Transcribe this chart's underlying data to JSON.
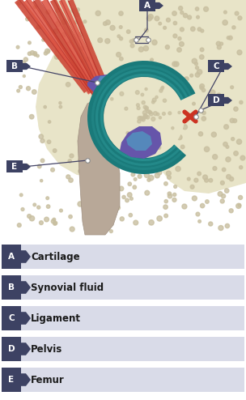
{
  "bg_color": "#ffffff",
  "label_box_color": "#3d4263",
  "label_text_color": "#ffffff",
  "legend_bg_color": "#d9dbe8",
  "legend_text_color": "#1a1a1a",
  "legend_items": [
    {
      "label": "A",
      "text": "Cartilage"
    },
    {
      "label": "B",
      "text": "Synovial fluid"
    },
    {
      "label": "C",
      "text": "Ligament"
    },
    {
      "label": "D",
      "text": "Pelvis"
    },
    {
      "label": "E",
      "text": "Femur"
    }
  ],
  "bone_color": "#e8e4c8",
  "bone_dot_color": "#c8bfa0",
  "cartilage_color": "#1a7a7a",
  "cartilage_inner_color": "#1e8a8a",
  "muscle_red": "#cc4433",
  "muscle_dark": "#aa2222",
  "femur_color": "#b8a898",
  "synovial_purple": "#6655aa",
  "synovial_blue": "#5588bb",
  "ligament_red": "#cc3322",
  "line_color": "#444466",
  "dot_color": "#ffffff",
  "note_box_color": "#f0eeee"
}
